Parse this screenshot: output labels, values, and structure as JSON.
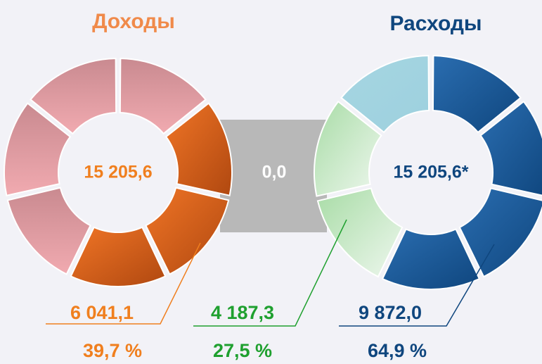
{
  "income": {
    "title": "Доходы",
    "total": "15 205,6",
    "value": "6 041,1",
    "percent": "39,7 %"
  },
  "balance": "0,0",
  "expenses": {
    "title": "Расходы",
    "total": "15 205,6*",
    "part1": {
      "value": "4 187,3",
      "percent": "27,5 %"
    },
    "part2": {
      "value": "9 872,0",
      "percent": "64,9 %"
    }
  }
}
